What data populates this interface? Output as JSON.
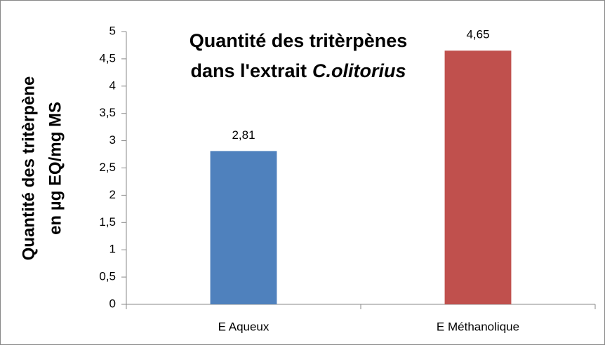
{
  "chart_data": {
    "type": "bar",
    "title": [
      "Quantité des tritèrpènes",
      "dans l'extrait",
      "C.olitorius"
    ],
    "ylabel": [
      "Quantité des tritèrpène",
      "en µg EQ/mg MS"
    ],
    "categories": [
      "E Aqueux",
      "E Méthanolique"
    ],
    "values": [
      2.81,
      4.65
    ],
    "value_labels": [
      "2,81",
      "4,65"
    ],
    "colors": [
      "#4f81bd",
      "#c0504d"
    ],
    "ylim": [
      0,
      5
    ],
    "yticks": [
      0,
      {
        "value": 0.5,
        "label": "0,5"
      },
      1,
      {
        "value": 1.5,
        "label": "1,5"
      },
      2,
      {
        "value": 2.5,
        "label": "2,5"
      },
      3,
      {
        "value": 3.5,
        "label": "3,5"
      },
      4,
      {
        "value": 4.5,
        "label": "4,5"
      },
      5
    ],
    "grid": false
  }
}
